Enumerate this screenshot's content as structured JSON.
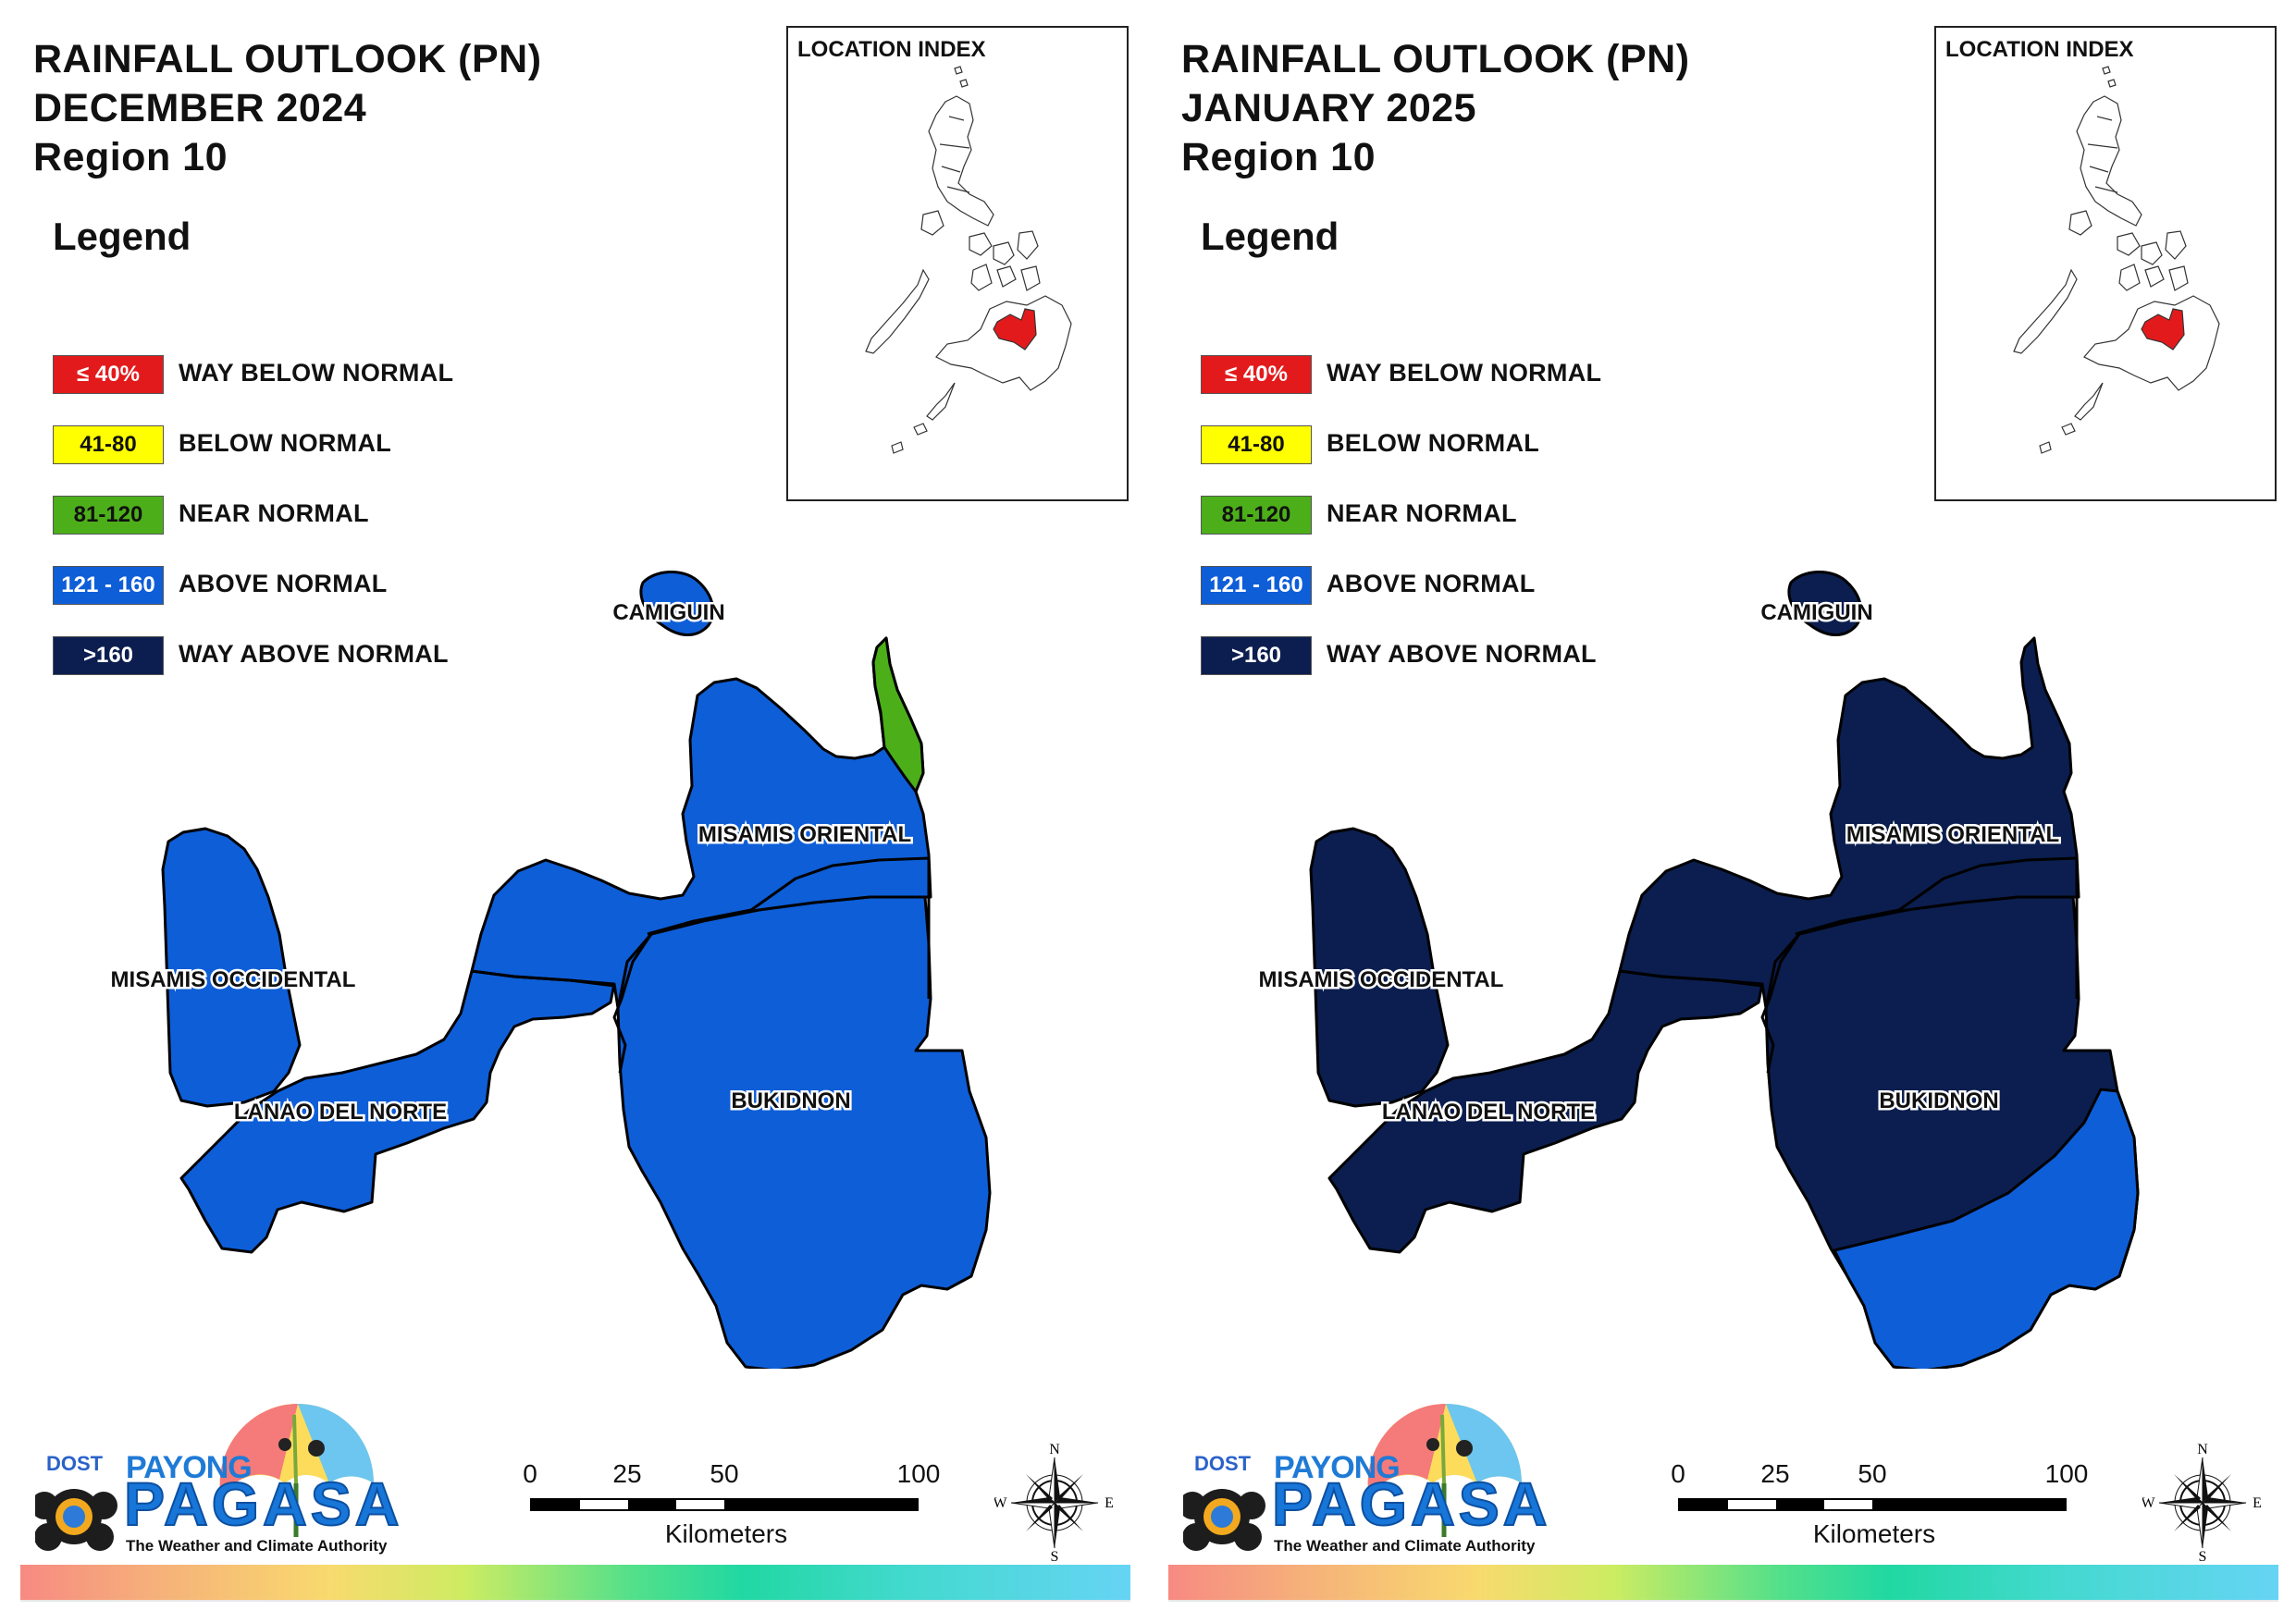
{
  "legend_items": [
    {
      "range": "≤ 40%",
      "label": "WAY BELOW NORMAL",
      "color": "#e31a1c",
      "text_color": "#ffffff"
    },
    {
      "range": "41-80",
      "label": "BELOW NORMAL",
      "color": "#ffff00",
      "text_color": "#111111"
    },
    {
      "range": "81-120",
      "label": "NEAR NORMAL",
      "color": "#4caf1a",
      "text_color": "#111111"
    },
    {
      "range": "121 - 160",
      "label": "ABOVE NORMAL",
      "color": "#0e5ed8",
      "text_color": "#ffffff"
    },
    {
      "range": ">160",
      "label": "WAY ABOVE NORMAL",
      "color": "#0b1e4f",
      "text_color": "#ffffff"
    }
  ],
  "province_labels": {
    "camiguin": "CAMIGUIN",
    "misamis_oriental": "MISAMIS ORIENTAL",
    "misamis_occidental": "MISAMIS OCCIDENTAL",
    "lanao_del_norte": "LANAO DEL NORTE",
    "bukidnon": "BUKIDNON"
  },
  "inset_title": "LOCATION INDEX",
  "scale": {
    "ticks": [
      "0",
      "25",
      "50",
      "100"
    ],
    "unit": "Kilometers"
  },
  "compass": {
    "n": "N",
    "s": "S",
    "e": "E",
    "w": "W"
  },
  "logo": {
    "dost": "DOST",
    "payong": "PAYONG",
    "pagasa": "PAGASA",
    "tagline": "The Weather and Climate Authority"
  },
  "panels": [
    {
      "title_line1": "RAINFALL OUTLOOK (PN)",
      "title_line2": "DECEMBER 2024",
      "title_line3": "Region 10",
      "legend_heading": "Legend",
      "province_category": {
        "camiguin": "ABOVE NORMAL",
        "misamis_oriental": "ABOVE NORMAL (NEAR NORMAL at northeastern tip)",
        "misamis_occidental": "ABOVE NORMAL",
        "lanao_del_norte": "ABOVE NORMAL",
        "bukidnon": "ABOVE NORMAL"
      },
      "colors": {
        "main": "#0e5ed8",
        "accent": "#4caf1a",
        "accent_part": "northeast-tip"
      }
    },
    {
      "title_line1": "RAINFALL OUTLOOK (PN)",
      "title_line2": "JANUARY 2025",
      "title_line3": "Region 10",
      "legend_heading": "Legend",
      "province_category": {
        "camiguin": "WAY ABOVE NORMAL",
        "misamis_oriental": "WAY ABOVE NORMAL",
        "misamis_occidental": "WAY ABOVE NORMAL",
        "lanao_del_norte": "WAY ABOVE NORMAL",
        "bukidnon": "WAY ABOVE NORMAL (ABOVE NORMAL in the south)"
      },
      "colors": {
        "main": "#0b1e4f",
        "accent": "#0e5ed8",
        "accent_part": "south-bukidnon"
      }
    }
  ]
}
